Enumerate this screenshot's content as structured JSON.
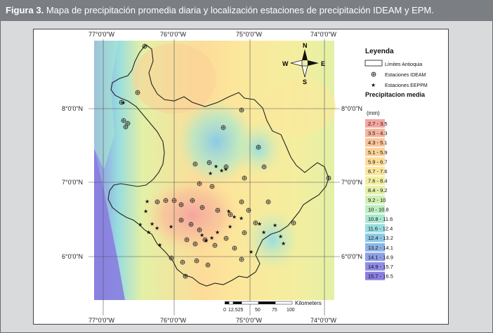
{
  "caption": {
    "label": "Figura 3.",
    "text": "Mapa de precipitación promedia diaria y localización estaciones de precipitación IDEAM y EPM."
  },
  "map": {
    "lon_labels": [
      "77°0'0\"W",
      "76°0'0\"W",
      "75°0'0\"W",
      "74°0'0\"W"
    ],
    "lat_labels": [
      "8°0'0\"N",
      "7°0'0\"N",
      "6°0'0\"N"
    ],
    "north_arrow": {
      "n": "N",
      "s": "S",
      "e": "E",
      "w": "W"
    },
    "scale_bar": {
      "ticks": [
        "0",
        "12.525",
        "50",
        "75",
        "100"
      ],
      "unit": "Kilometers"
    }
  },
  "legend": {
    "title": "Leyenda",
    "limits_label": "Límites Antioquia",
    "ideam_label": "Estaciones IDEAM",
    "epm_label": "Estaciones EEPPM",
    "precip_title": "Precipitacion media",
    "unit": "(mm)",
    "classes": [
      {
        "label": "2.7 - 3.5",
        "color": "#f4a6a0"
      },
      {
        "label": "3.5 - 4.3",
        "color": "#f7b49c"
      },
      {
        "label": "4.3 - 5.1",
        "color": "#f9c39a"
      },
      {
        "label": "5.1 - 5.9",
        "color": "#fbd098"
      },
      {
        "label": "5.9 - 6.7",
        "color": "#fddc98"
      },
      {
        "label": "6.7 - 7.6",
        "color": "#fbe79c"
      },
      {
        "label": "7.6 - 8.4",
        "color": "#f3ee9f"
      },
      {
        "label": "8.4 - 9.2",
        "color": "#e3f0a6"
      },
      {
        "label": "9.2 - 10",
        "color": "#d0f0b2"
      },
      {
        "label": "10 - 10.8",
        "color": "#bdeebf"
      },
      {
        "label": "10.8 - 11.6",
        "color": "#a9e8d0"
      },
      {
        "label": "11.6 - 12.4",
        "color": "#98dde0"
      },
      {
        "label": "12.4 - 13.2",
        "color": "#8cc9e6"
      },
      {
        "label": "13.2 - 14.1",
        "color": "#8db4e6"
      },
      {
        "label": "14.1 - 14.9",
        "color": "#8ea0e6"
      },
      {
        "label": "14.9 - 15.7",
        "color": "#8e8de4"
      },
      {
        "label": "15.7 - 16.5",
        "color": "#8a7ee0"
      }
    ]
  }
}
